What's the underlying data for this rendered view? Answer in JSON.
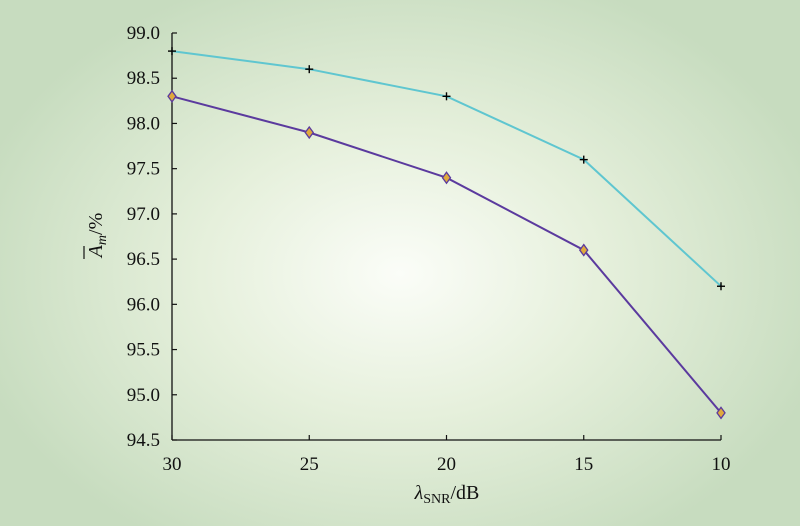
{
  "chart_data": {
    "type": "line",
    "x": [
      30,
      25,
      20,
      15,
      10
    ],
    "xlim": [
      30,
      10
    ],
    "ylim": [
      94.5,
      99.0
    ],
    "x_ticks": [
      "30",
      "25",
      "20",
      "15",
      "10"
    ],
    "y_ticks": [
      "99.0",
      "98.5",
      "98.0",
      "97.5",
      "97.0",
      "96.5",
      "96.0",
      "95.5",
      "95.0",
      "94.5"
    ],
    "xlabel": {
      "symbol": "λ",
      "subscript": "SNR",
      "unit": "/dB"
    },
    "ylabel": {
      "symbol": "A",
      "subscript": "m",
      "unit": "/%"
    },
    "grid": false,
    "legend": "none",
    "series": [
      {
        "values": [
          98.8,
          98.6,
          98.3,
          97.6,
          96.2
        ],
        "color": "#5fc6d0",
        "marker": "plus",
        "marker_color": "#000000"
      },
      {
        "values": [
          98.3,
          97.9,
          97.4,
          96.6,
          94.8
        ],
        "color": "#5b3a9e",
        "marker": "diamond",
        "marker_color": "#e0a93c"
      }
    ]
  }
}
